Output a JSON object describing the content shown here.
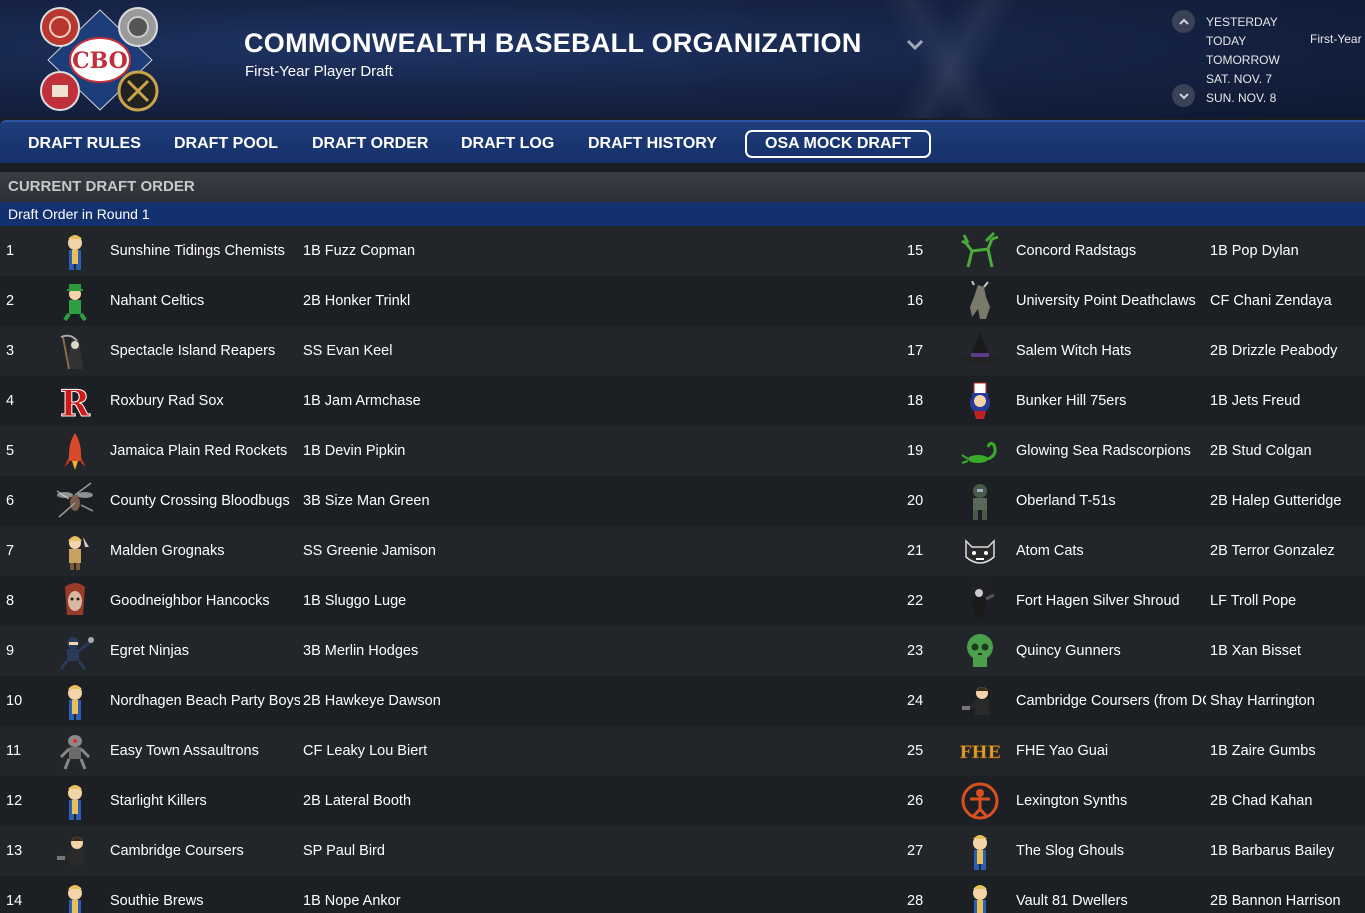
{
  "header": {
    "org_title": "COMMONWEALTH BASEBALL ORGANIZATION",
    "subtitle": "First-Year Player Draft",
    "logo_text": "CBO",
    "dates": [
      "YESTERDAY",
      "TODAY",
      "TOMORROW",
      "SAT. NOV. 7",
      "SUN. NOV. 8"
    ],
    "date_right": "First-Year"
  },
  "nav": {
    "items": [
      "DRAFT RULES",
      "DRAFT POOL",
      "DRAFT ORDER",
      "DRAFT LOG",
      "DRAFT HISTORY",
      "OSA MOCK DRAFT"
    ],
    "active": "OSA MOCK DRAFT"
  },
  "section": {
    "title": "CURRENT DRAFT ORDER",
    "round_label": "Draft Order in Round 1"
  },
  "colors": {
    "header_bg": "#162447",
    "nav_bg": "#1e3d7a",
    "round_bar": "#14316f",
    "row_odd": "#22252a",
    "row_even": "#1c1f24"
  },
  "left_picks": [
    {
      "pick": "1",
      "team": "Sunshine Tidings Chemists",
      "player": "1B Fuzz Copman",
      "icon": "vault-boy-icon"
    },
    {
      "pick": "2",
      "team": "Nahant Celtics",
      "player": "2B Honker Trinkl",
      "icon": "leprechaun-icon"
    },
    {
      "pick": "3",
      "team": "Spectacle Island Reapers",
      "player": "SS Evan Keel",
      "icon": "reaper-icon"
    },
    {
      "pick": "4",
      "team": "Roxbury Rad Sox",
      "player": "1B Jam Armchase",
      "icon": "letter-r-icon"
    },
    {
      "pick": "5",
      "team": "Jamaica Plain Red Rockets",
      "player": "1B Devin Pipkin",
      "icon": "rocket-icon"
    },
    {
      "pick": "6",
      "team": "County Crossing Bloodbugs",
      "player": "3B Size Man Green",
      "icon": "bloodbug-icon"
    },
    {
      "pick": "7",
      "team": "Malden Grognaks",
      "player": "SS Greenie Jamison",
      "icon": "barbarian-icon"
    },
    {
      "pick": "8",
      "team": "Goodneighbor Hancocks",
      "player": "1B Sluggo Luge",
      "icon": "ghoul-icon"
    },
    {
      "pick": "9",
      "team": "Egret Ninjas",
      "player": "3B Merlin Hodges",
      "icon": "ninja-icon"
    },
    {
      "pick": "10",
      "team": "Nordhagen Beach Party Boys",
      "player": "2B Hawkeye Dawson",
      "icon": "vault-boy-icon"
    },
    {
      "pick": "11",
      "team": "Easy Town Assaultrons",
      "player": "CF Leaky Lou Biert",
      "icon": "robot-icon"
    },
    {
      "pick": "12",
      "team": "Starlight Killers",
      "player": "2B Lateral Booth",
      "icon": "vault-boy-icon"
    },
    {
      "pick": "13",
      "team": "Cambridge Coursers",
      "player": "SP Paul Bird",
      "icon": "courser-icon"
    },
    {
      "pick": "14",
      "team": "Southie Brews",
      "player": "1B Nope Ankor",
      "icon": "vault-boy-icon"
    }
  ],
  "right_picks": [
    {
      "pick": "15",
      "team": "Concord Radstags",
      "player": "1B Pop Dylan",
      "icon": "radstag-icon"
    },
    {
      "pick": "16",
      "team": "University Point Deathclaws",
      "player": "CF Chani Zendaya",
      "icon": "deathclaw-icon"
    },
    {
      "pick": "17",
      "team": "Salem Witch Hats",
      "player": "2B Drizzle Peabody",
      "icon": "witch-hat-icon"
    },
    {
      "pick": "18",
      "team": "Bunker Hill 75ers",
      "player": "1B Jets Freud",
      "icon": "uncle-sam-icon"
    },
    {
      "pick": "19",
      "team": "Glowing Sea Radscorpions",
      "player": "2B Stud Colgan",
      "icon": "scorpion-icon"
    },
    {
      "pick": "20",
      "team": "Oberland T-51s",
      "player": "2B Halep Gutteridge",
      "icon": "power-armor-icon"
    },
    {
      "pick": "21",
      "team": "Atom Cats",
      "player": "2B Terror Gonzalez",
      "icon": "cat-icon"
    },
    {
      "pick": "22",
      "team": "Fort Hagen Silver Shroud",
      "player": "LF Troll Pope",
      "icon": "silver-shroud-icon"
    },
    {
      "pick": "23",
      "team": "Quincy Gunners",
      "player": "1B Xan Bisset",
      "icon": "skull-icon"
    },
    {
      "pick": "24",
      "team": "Cambridge Coursers (from DC",
      "player": "Shay Harrington",
      "icon": "courser-icon"
    },
    {
      "pick": "25",
      "team": "FHE Yao Guai",
      "player": "1B Zaire Gumbs",
      "icon": "fhe-text-icon",
      "icon_text": "FHE"
    },
    {
      "pick": "26",
      "team": "Lexington Synths",
      "player": "2B Chad Kahan",
      "icon": "synth-icon"
    },
    {
      "pick": "27",
      "team": "The Slog Ghouls",
      "player": "1B Barbarus Bailey",
      "icon": "vault-boy-icon"
    },
    {
      "pick": "28",
      "team": "Vault 81 Dwellers",
      "player": "2B Bannon Harrison",
      "icon": "vault-boy-icon"
    }
  ]
}
